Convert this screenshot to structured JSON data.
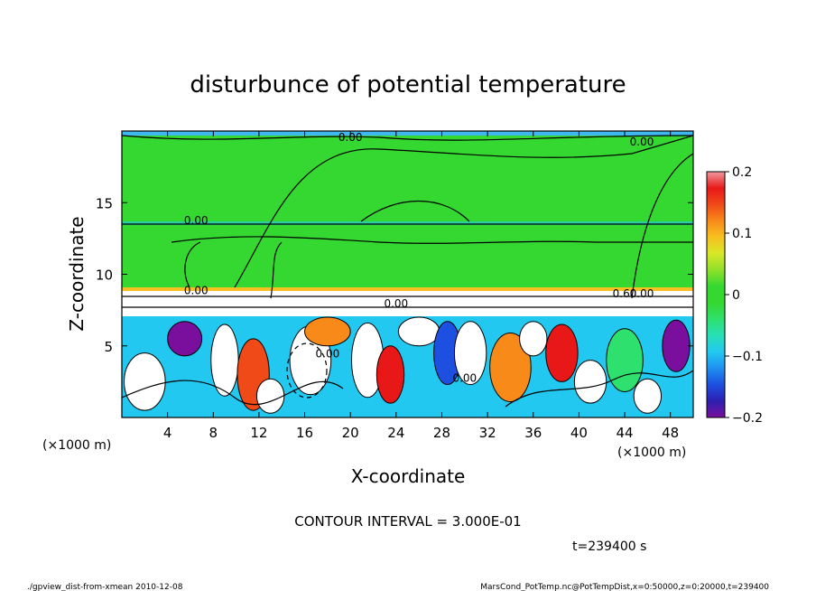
{
  "chart_data": {
    "type": "heatmap",
    "title": "disturbunce of potential temperature",
    "xlabel": "X-coordinate",
    "ylabel": "Z-coordinate",
    "x_unit": "(×1000 m)",
    "y_unit": "(×1000 m)",
    "xlim": [
      0,
      50
    ],
    "ylim": [
      0,
      20
    ],
    "x_ticks": [
      4,
      8,
      12,
      16,
      20,
      24,
      28,
      32,
      36,
      40,
      44,
      48
    ],
    "y_ticks": [
      5,
      10,
      15
    ],
    "colorbar": {
      "min": -0.2,
      "max": 0.2,
      "tick_values": [
        0.2,
        0.1,
        0,
        -0.1,
        -0.2
      ],
      "tick_labels": [
        "0.2",
        "0.1",
        "0",
        "−0.1",
        "−0.2"
      ],
      "colors": [
        "#7a0f9e",
        "#2d1fb0",
        "#1d4fe0",
        "#1f8ff0",
        "#22c8f0",
        "#27e0b8",
        "#2ee06e",
        "#35d830",
        "#35d830",
        "#8fe02a",
        "#d8e828",
        "#f8c020",
        "#f88a1a",
        "#f04a18",
        "#e81818",
        "#f09aa0"
      ]
    },
    "contour_labels": [
      "0.00",
      "0.00",
      "0.00",
      "0.00",
      "0.00",
      "0.60",
      "0.00",
      "0.00",
      "0.00"
    ],
    "contour_interval_text": "CONTOUR INTERVAL = 3.000E-01",
    "time_text": "t=239400 s"
  },
  "footer": {
    "left": "./gpview_dist-from-xmean  2010-12-08",
    "right": "MarsCond_PotTemp.nc@PotTempDist,x=0:50000,z=0:20000,t=239400"
  },
  "colors": {
    "upper_field": "#35d830",
    "white_patch": "#ffffff"
  }
}
